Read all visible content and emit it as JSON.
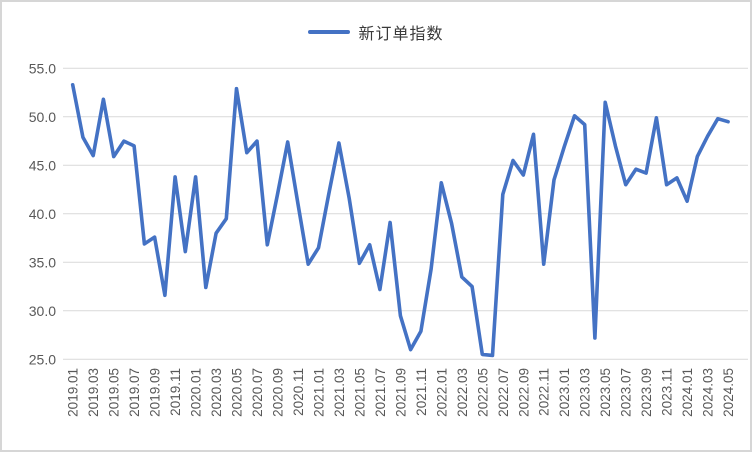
{
  "legend": {
    "label": "新订单指数"
  },
  "colors": {
    "line": "#4472c4",
    "grid": "#d9d9d9",
    "axis_text": "#595959",
    "legend_text": "#3a3a3a",
    "frame_border": "#d6d6d6",
    "background": "#ffffff"
  },
  "y_axis": {
    "tick_labels": [
      "25.0",
      "30.0",
      "35.0",
      "40.0",
      "45.0",
      "50.0",
      "55.0"
    ]
  },
  "chart_data": {
    "type": "line",
    "title": "",
    "xlabel": "",
    "ylabel": "",
    "legend_position": "top-center",
    "grid": "horizontal",
    "ylim": [
      25,
      55
    ],
    "ytick_step": 5,
    "xtick_step": 2,
    "categories": [
      "2019.01",
      "2019.02",
      "2019.03",
      "2019.04",
      "2019.05",
      "2019.06",
      "2019.07",
      "2019.08",
      "2019.09",
      "2019.10",
      "2019.11",
      "2019.12",
      "2020.01",
      "2020.02",
      "2020.03",
      "2020.04",
      "2020.05",
      "2020.06",
      "2020.07",
      "2020.08",
      "2020.09",
      "2020.10",
      "2020.11",
      "2020.12",
      "2021.01",
      "2021.02",
      "2021.03",
      "2021.04",
      "2021.05",
      "2021.06",
      "2021.07",
      "2021.08",
      "2021.09",
      "2021.10",
      "2021.11",
      "2021.12",
      "2022.01",
      "2022.02",
      "2022.03",
      "2022.04",
      "2022.05",
      "2022.06",
      "2022.07",
      "2022.08",
      "2022.09",
      "2022.10",
      "2022.11",
      "2022.12",
      "2023.01",
      "2023.02",
      "2023.03",
      "2023.04",
      "2023.05",
      "2023.06",
      "2023.07",
      "2023.08",
      "2023.09",
      "2023.10",
      "2023.11",
      "2023.12",
      "2024.01",
      "2024.02",
      "2024.03",
      "2024.04",
      "2024.05"
    ],
    "series": [
      {
        "name": "新订单指数",
        "values": [
          53.3,
          47.9,
          46.0,
          51.8,
          45.9,
          47.5,
          47.0,
          36.9,
          37.6,
          31.6,
          43.8,
          36.1,
          43.8,
          32.4,
          38.0,
          39.5,
          52.9,
          46.3,
          47.5,
          36.8,
          42.0,
          47.4,
          41.0,
          34.8,
          36.5,
          42.0,
          47.3,
          41.6,
          34.9,
          36.8,
          32.2,
          39.1,
          29.5,
          26.0,
          27.9,
          34.3,
          43.2,
          39.0,
          33.5,
          32.5,
          25.5,
          25.4,
          42.0,
          45.5,
          44.0,
          48.2,
          34.8,
          43.5,
          46.9,
          50.1,
          49.2,
          27.2,
          51.5,
          47.0,
          43.0,
          44.6,
          44.2,
          49.9,
          43.0,
          43.7,
          41.3,
          45.9,
          48.0,
          49.8,
          49.5
        ]
      }
    ]
  }
}
